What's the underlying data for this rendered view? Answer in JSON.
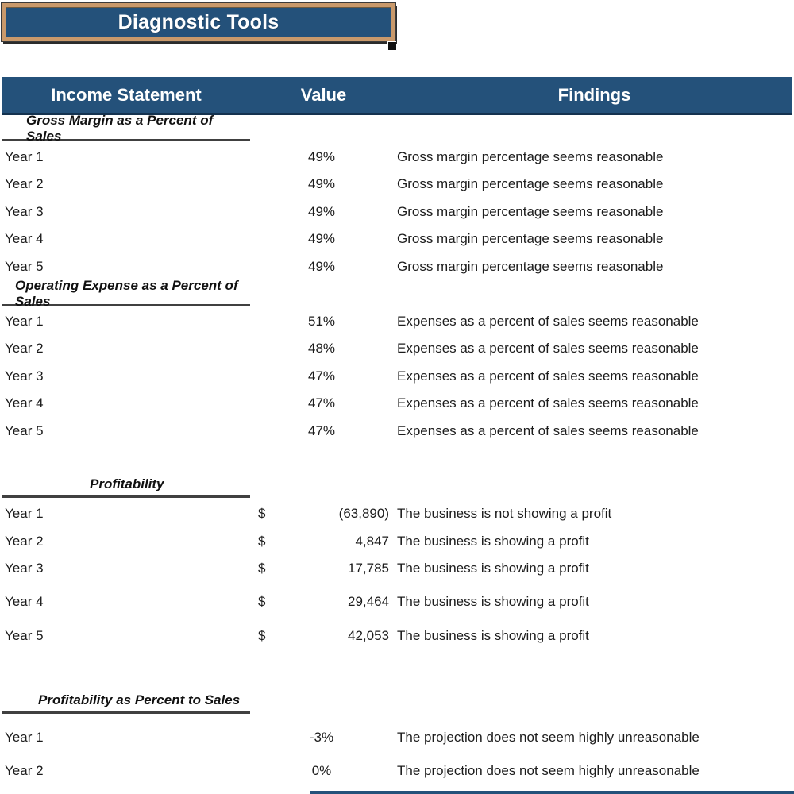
{
  "title_button": {
    "label": "Diagnostic Tools"
  },
  "colors": {
    "header_blue": "#24517A",
    "title_border_tan": "#C9996B",
    "heading_underline": "#404040"
  },
  "table": {
    "headers": {
      "col1": "Income Statement",
      "col2": "Value",
      "col3": "Findings"
    },
    "sections": [
      {
        "heading": "Gross Margin as a Percent of Sales",
        "rows": [
          {
            "label": "Year 1",
            "value": "49%",
            "finding": "Gross margin percentage seems reasonable"
          },
          {
            "label": "Year 2",
            "value": "49%",
            "finding": "Gross margin percentage seems reasonable"
          },
          {
            "label": "Year 3",
            "value": "49%",
            "finding": "Gross margin percentage seems reasonable"
          },
          {
            "label": "Year 4",
            "value": "49%",
            "finding": "Gross margin percentage seems reasonable"
          },
          {
            "label": "Year 5",
            "value": "49%",
            "finding": "Gross margin percentage seems reasonable"
          }
        ]
      },
      {
        "heading": "Operating Expense as a Percent of Sales",
        "rows": [
          {
            "label": "Year 1",
            "value": "51%",
            "finding": "Expenses as a percent of sales seems reasonable"
          },
          {
            "label": "Year 2",
            "value": "48%",
            "finding": "Expenses as a percent of sales seems reasonable"
          },
          {
            "label": "Year 3",
            "value": "47%",
            "finding": "Expenses as a percent of sales seems reasonable"
          },
          {
            "label": "Year 4",
            "value": "47%",
            "finding": "Expenses as a percent of sales seems reasonable"
          },
          {
            "label": "Year 5",
            "value": "47%",
            "finding": "Expenses as a percent of sales seems reasonable"
          }
        ]
      },
      {
        "heading": "Profitability",
        "rows": [
          {
            "label": "Year 1",
            "currency": "$",
            "value": "(63,890)",
            "finding": "The business is not showing a profit"
          },
          {
            "label": "Year 2",
            "currency": "$",
            "value": "4,847",
            "finding": "The business is showing a profit"
          },
          {
            "label": "Year 3",
            "currency": "$",
            "value": "17,785",
            "finding": "The business is showing a profit"
          },
          {
            "label": "Year 4",
            "currency": "$",
            "value": "29,464",
            "finding": "The business is showing a profit"
          },
          {
            "label": "Year 5",
            "currency": "$",
            "value": "42,053",
            "finding": "The business is showing a profit"
          }
        ]
      },
      {
        "heading": "Profitability as Percent to Sales",
        "rows": [
          {
            "label": "Year 1",
            "value": "-3%",
            "finding": "The projection does not seem highly unreasonable"
          },
          {
            "label": "Year 2",
            "value": "0%",
            "finding": "The projection does not seem highly unreasonable"
          }
        ]
      }
    ]
  }
}
